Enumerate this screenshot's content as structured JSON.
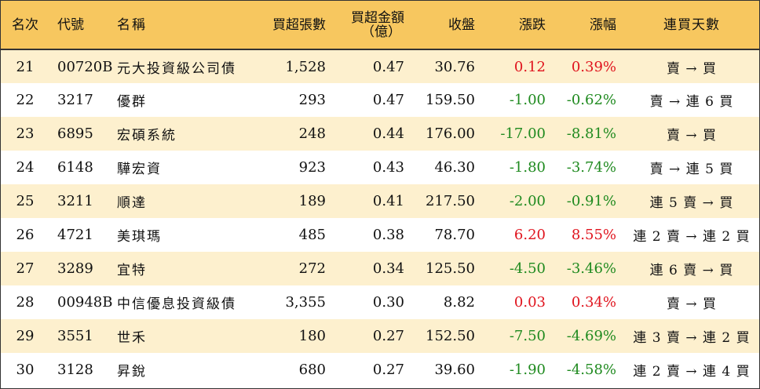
{
  "headers": {
    "rank": "名次",
    "code": "代號",
    "name": "名稱",
    "net_buy_lots": "買超張數",
    "net_buy_amount_line1": "買超金額",
    "net_buy_amount_line2": "（億）",
    "close": "收盤",
    "change": "漲跌",
    "pct": "漲幅",
    "days": "連買天數"
  },
  "colors": {
    "header_bg": "#f7c75f",
    "stripe_bg": "#fdf0ce",
    "up": "#e0141e",
    "down": "#1f8a1f"
  },
  "rows": [
    {
      "rank": "21",
      "code": "00720B",
      "name": "元大投資級公司債",
      "lots": "1,528",
      "amount": "0.47",
      "close": "30.76",
      "change": "0.12",
      "pct": "0.39%",
      "days": "賣 → 買",
      "dir": "up"
    },
    {
      "rank": "22",
      "code": "3217",
      "name": "優群",
      "lots": "293",
      "amount": "0.47",
      "close": "159.50",
      "change": "-1.00",
      "pct": "-0.62%",
      "days": "賣 → 連 6 買",
      "dir": "down"
    },
    {
      "rank": "23",
      "code": "6895",
      "name": "宏碩系統",
      "lots": "248",
      "amount": "0.44",
      "close": "176.00",
      "change": "-17.00",
      "pct": "-8.81%",
      "days": "賣 → 買",
      "dir": "down"
    },
    {
      "rank": "24",
      "code": "6148",
      "name": "驊宏資",
      "lots": "923",
      "amount": "0.43",
      "close": "46.30",
      "change": "-1.80",
      "pct": "-3.74%",
      "days": "賣 → 連 5 買",
      "dir": "down"
    },
    {
      "rank": "25",
      "code": "3211",
      "name": "順達",
      "lots": "189",
      "amount": "0.41",
      "close": "217.50",
      "change": "-2.00",
      "pct": "-0.91%",
      "days": "連 5 賣 → 買",
      "dir": "down"
    },
    {
      "rank": "26",
      "code": "4721",
      "name": "美琪瑪",
      "lots": "485",
      "amount": "0.38",
      "close": "78.70",
      "change": "6.20",
      "pct": "8.55%",
      "days": "連 2 賣 → 連 2 買",
      "dir": "up"
    },
    {
      "rank": "27",
      "code": "3289",
      "name": "宜特",
      "lots": "272",
      "amount": "0.34",
      "close": "125.50",
      "change": "-4.50",
      "pct": "-3.46%",
      "days": "連 6 賣 → 買",
      "dir": "down"
    },
    {
      "rank": "28",
      "code": "00948B",
      "name": "中信優息投資級債",
      "lots": "3,355",
      "amount": "0.30",
      "close": "8.82",
      "change": "0.03",
      "pct": "0.34%",
      "days": "賣 → 買",
      "dir": "up"
    },
    {
      "rank": "29",
      "code": "3551",
      "name": "世禾",
      "lots": "180",
      "amount": "0.27",
      "close": "152.50",
      "change": "-7.50",
      "pct": "-4.69%",
      "days": "連 3 賣 → 連 2 買",
      "dir": "down"
    },
    {
      "rank": "30",
      "code": "3128",
      "name": "昇銳",
      "lots": "680",
      "amount": "0.27",
      "close": "39.60",
      "change": "-1.90",
      "pct": "-4.58%",
      "days": "連 2 賣 → 連 4 買",
      "dir": "down"
    }
  ]
}
